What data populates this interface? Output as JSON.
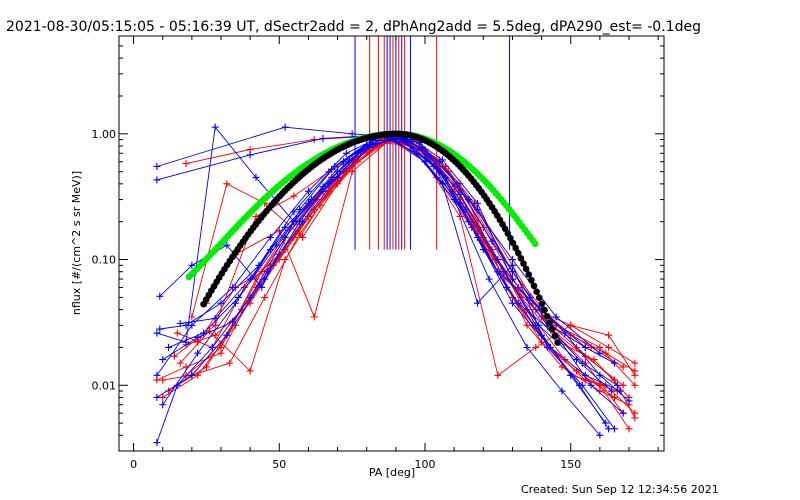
{
  "chart_data": {
    "type": "line",
    "title": "2021-08-30/05:15:05 - 05:16:39 UT, dSectr2add = 2, dPhAng2add = 5.5deg, dPA290_est= -0.1deg",
    "xlabel": "PA [deg]",
    "ylabel": "nflux [#/(cm^2 s sr MeV)]",
    "xlim": [
      -5,
      182
    ],
    "ylim": [
      0.003,
      6.0
    ],
    "yscale": "log",
    "x_ticks": [
      0,
      50,
      100,
      150
    ],
    "x_tick_labels": [
      "0",
      "50",
      "100",
      "150"
    ],
    "y_ticks": [
      0.01,
      0.1,
      1.0
    ],
    "y_tick_labels": [
      "0.01",
      "0.10",
      "1.00"
    ],
    "footer": "Created: Sun Sep 12 12:34:56 2021",
    "colors": {
      "series_a": "#ff0000",
      "series_b": "#0000ff",
      "fit_green": "#00ee00",
      "fit_black": "#000000",
      "axes": "#000000"
    },
    "series": [
      {
        "name": "red-1",
        "color": "#ff0000",
        "x": [
          18,
          28,
          40,
          52,
          63,
          75,
          88,
          100,
          112,
          124,
          137,
          150,
          162,
          172
        ],
        "y": [
          0.021,
          0.025,
          0.045,
          0.12,
          0.3,
          0.62,
          0.9,
          0.72,
          0.4,
          0.1,
          0.045,
          0.025,
          0.018,
          0.013
        ]
      },
      {
        "name": "red-2",
        "color": "#ff0000",
        "x": [
          10,
          22,
          35,
          47,
          60,
          72,
          85,
          97,
          110,
          122,
          135,
          147,
          160,
          170
        ],
        "y": [
          0.008,
          0.012,
          0.03,
          0.09,
          0.22,
          0.5,
          0.85,
          0.8,
          0.35,
          0.12,
          0.03,
          0.014,
          0.009,
          0.007
        ]
      },
      {
        "name": "red-3",
        "color": "#ff0000",
        "x": [
          15,
          27,
          38,
          50,
          62,
          75,
          87,
          100,
          112,
          125,
          138,
          150,
          163,
          172
        ],
        "y": [
          0.026,
          0.02,
          0.06,
          0.11,
          0.3,
          0.6,
          0.92,
          0.75,
          0.3,
          0.08,
          0.04,
          0.03,
          0.025,
          0.012
        ]
      },
      {
        "name": "red-4",
        "color": "#ff0000",
        "x": [
          20,
          33,
          45,
          57,
          70,
          82,
          95,
          107,
          120,
          132,
          145,
          157,
          168
        ],
        "y": [
          0.012,
          0.015,
          0.05,
          0.16,
          0.42,
          0.88,
          0.93,
          0.55,
          0.18,
          0.06,
          0.03,
          0.02,
          0.014
        ]
      },
      {
        "name": "red-5",
        "color": "#ff0000",
        "x": [
          12,
          25,
          37,
          50,
          62,
          75,
          88,
          100,
          112,
          125,
          137,
          150,
          162,
          172
        ],
        "y": [
          0.009,
          0.014,
          0.04,
          0.1,
          0.25,
          0.55,
          0.95,
          0.7,
          0.3,
          0.1,
          0.03,
          0.012,
          0.01,
          0.006
        ]
      },
      {
        "name": "red-6",
        "color": "#ff0000",
        "x": [
          18,
          30,
          42,
          55,
          68,
          80,
          92,
          105,
          118,
          130,
          143,
          155,
          166
        ],
        "y": [
          0.012,
          0.02,
          0.07,
          0.2,
          0.45,
          0.82,
          0.98,
          0.55,
          0.2,
          0.05,
          0.02,
          0.011,
          0.009
        ]
      },
      {
        "name": "red-7",
        "color": "#ff0000",
        "x": [
          10,
          20,
          32,
          44,
          56,
          68,
          80,
          92,
          104,
          116,
          128,
          140,
          152,
          165
        ],
        "y": [
          0.011,
          0.012,
          0.025,
          0.08,
          0.2,
          0.45,
          0.8,
          0.95,
          0.45,
          0.18,
          0.06,
          0.022,
          0.013,
          0.008
        ]
      },
      {
        "name": "red-8",
        "color": "#ff0000",
        "x": [
          22,
          35,
          48,
          60,
          73,
          85,
          98,
          110,
          123,
          135,
          148,
          160,
          170
        ],
        "y": [
          0.022,
          0.06,
          0.09,
          0.22,
          0.5,
          0.85,
          0.88,
          0.38,
          0.12,
          0.04,
          0.016,
          0.01,
          0.0045
        ]
      },
      {
        "name": "red-9",
        "color": "#ff0000",
        "x": [
          18,
          40,
          62,
          85,
          100,
          115,
          130,
          145,
          160,
          172
        ],
        "y": [
          0.58,
          0.75,
          0.9,
          0.97,
          0.72,
          0.3,
          0.08,
          0.03,
          0.02,
          0.01
        ]
      },
      {
        "name": "red-10",
        "color": "#ff0000",
        "x": [
          25,
          35,
          50,
          62,
          75,
          88,
          100,
          112,
          125,
          138,
          150,
          163,
          172
        ],
        "y": [
          0.045,
          0.11,
          0.17,
          0.035,
          0.5,
          0.9,
          0.6,
          0.22,
          0.012,
          0.02,
          0.03,
          0.02,
          0.015
        ]
      },
      {
        "name": "red-11",
        "color": "#ff0000",
        "x": [
          14,
          28,
          42,
          55,
          67,
          80,
          92,
          105,
          117,
          130,
          143,
          155,
          168
        ],
        "y": [
          0.017,
          0.03,
          0.22,
          0.32,
          0.5,
          0.72,
          0.95,
          0.62,
          0.28,
          0.09,
          0.028,
          0.015,
          0.006
        ]
      },
      {
        "name": "red-12",
        "color": "#ff0000",
        "x": [
          20,
          32,
          45,
          58,
          70,
          83,
          95,
          108,
          120,
          133,
          146,
          158,
          170
        ],
        "y": [
          0.035,
          0.4,
          0.28,
          0.15,
          0.4,
          0.92,
          0.88,
          0.5,
          0.15,
          0.05,
          0.022,
          0.016,
          0.008
        ]
      },
      {
        "name": "red-13",
        "color": "#ff0000",
        "x": [
          8,
          18,
          30,
          42,
          55,
          67,
          80,
          92,
          105,
          118,
          130,
          143,
          155,
          168
        ],
        "y": [
          0.011,
          0.014,
          0.018,
          0.06,
          0.15,
          0.35,
          0.75,
          0.97,
          0.5,
          0.16,
          0.07,
          0.028,
          0.017,
          0.01
        ]
      },
      {
        "name": "red-14",
        "color": "#ff0000",
        "x": [
          16,
          26,
          40,
          52,
          64,
          77,
          89,
          101,
          113,
          126,
          140,
          152,
          165,
          172
        ],
        "y": [
          0.015,
          0.027,
          0.013,
          0.1,
          0.27,
          0.6,
          0.93,
          0.7,
          0.25,
          0.08,
          0.035,
          0.02,
          0.011,
          0.0055
        ]
      },
      {
        "name": "blue-1",
        "color": "#0000ff",
        "x": [
          8,
          52,
          75,
          88,
          100,
          112,
          125,
          140,
          155,
          165
        ],
        "y": [
          0.55,
          1.13,
          1.0,
          0.95,
          0.6,
          0.28,
          0.08,
          0.04,
          0.02,
          0.015
        ]
      },
      {
        "name": "blue-2",
        "color": "#0000ff",
        "x": [
          8,
          40,
          65,
          85,
          100,
          115,
          130,
          145,
          160
        ],
        "y": [
          0.43,
          0.68,
          0.92,
          0.98,
          0.65,
          0.3,
          0.1,
          0.035,
          0.018
        ]
      },
      {
        "name": "blue-3",
        "color": "#0000ff",
        "x": [
          8,
          18,
          28,
          42,
          55,
          67,
          80,
          92,
          105,
          118,
          130,
          143,
          155,
          167
        ],
        "y": [
          0.026,
          0.022,
          1.13,
          0.45,
          0.2,
          0.4,
          0.8,
          0.93,
          0.5,
          0.15,
          0.045,
          0.02,
          0.012,
          0.009
        ]
      },
      {
        "name": "blue-4",
        "color": "#0000ff",
        "x": [
          8,
          20,
          32,
          45,
          57,
          70,
          82,
          95,
          107,
          120,
          132,
          145,
          157,
          168
        ],
        "y": [
          0.008,
          0.012,
          0.025,
          0.07,
          0.2,
          0.5,
          0.88,
          0.9,
          0.45,
          0.12,
          0.045,
          0.025,
          0.01,
          0.006
        ]
      },
      {
        "name": "blue-5",
        "color": "#0000ff",
        "x": [
          10,
          22,
          35,
          47,
          60,
          72,
          85,
          97,
          110,
          122,
          135,
          147,
          160
        ],
        "y": [
          0.007,
          0.018,
          0.045,
          0.12,
          0.28,
          0.6,
          0.97,
          0.7,
          0.3,
          0.07,
          0.02,
          0.009,
          0.004
        ]
      },
      {
        "name": "blue-6",
        "color": "#0000ff",
        "x": [
          8,
          15,
          27,
          40,
          52,
          65,
          78,
          90,
          103,
          115,
          128,
          140,
          153,
          163
        ],
        "y": [
          0.0035,
          0.01,
          0.02,
          0.05,
          0.15,
          0.35,
          0.72,
          0.96,
          0.55,
          0.2,
          0.06,
          0.025,
          0.01,
          0.0045
        ]
      },
      {
        "name": "blue-7",
        "color": "#0000ff",
        "x": [
          9,
          20,
          32,
          44,
          57,
          69,
          82,
          94,
          106,
          118,
          130,
          142,
          154,
          165
        ],
        "y": [
          0.051,
          0.09,
          0.13,
          0.06,
          0.25,
          0.55,
          0.9,
          0.85,
          0.4,
          0.045,
          0.09,
          0.02,
          0.01,
          0.0045
        ]
      },
      {
        "name": "blue-8",
        "color": "#0000ff",
        "x": [
          9,
          18,
          30,
          43,
          55,
          68,
          80,
          93,
          105,
          118,
          130,
          143,
          155,
          165
        ],
        "y": [
          0.028,
          0.03,
          0.045,
          0.09,
          0.24,
          0.52,
          0.82,
          0.92,
          0.6,
          0.25,
          0.08,
          0.03,
          0.02,
          0.015
        ]
      },
      {
        "name": "blue-9",
        "color": "#0000ff",
        "x": [
          8,
          20,
          34,
          47,
          60,
          73,
          86,
          99,
          112,
          125,
          138,
          150,
          162
        ],
        "y": [
          0.012,
          0.03,
          0.06,
          0.15,
          0.35,
          0.7,
          0.98,
          0.78,
          0.33,
          0.1,
          0.03,
          0.012,
          0.005
        ]
      },
      {
        "name": "blue-10",
        "color": "#0000ff",
        "x": [
          12,
          24,
          36,
          49,
          61,
          74,
          86,
          98,
          111,
          123,
          136,
          148,
          160,
          170
        ],
        "y": [
          0.02,
          0.026,
          0.05,
          0.13,
          0.3,
          0.62,
          0.95,
          0.85,
          0.4,
          0.14,
          0.05,
          0.026,
          0.012,
          0.0075
        ]
      },
      {
        "name": "blue-11",
        "color": "#0000ff",
        "x": [
          10,
          22,
          34,
          46,
          58,
          70,
          82,
          94,
          106,
          118,
          130,
          142,
          154,
          166
        ],
        "y": [
          0.016,
          0.024,
          0.032,
          0.08,
          0.2,
          0.45,
          0.82,
          0.97,
          0.62,
          0.28,
          0.07,
          0.03,
          0.015,
          0.01
        ]
      },
      {
        "name": "blue-12",
        "color": "#0000ff",
        "x": [
          16,
          28,
          40,
          52,
          65,
          77,
          90,
          102,
          114,
          127,
          139,
          152,
          164
        ],
        "y": [
          0.031,
          0.034,
          0.07,
          0.18,
          0.38,
          0.7,
          0.95,
          0.65,
          0.25,
          0.08,
          0.03,
          0.016,
          0.009
        ]
      }
    ],
    "fits": [
      {
        "name": "green-fit",
        "color": "#00ee00",
        "peak": 1.0,
        "center": 90.2,
        "floor": 0.03,
        "sigma_left": 28.5,
        "sigma_right": 22.5,
        "x_range": [
          19,
          138
        ]
      },
      {
        "name": "black-fit",
        "color": "#000000",
        "peak": 1.0,
        "center": 90.2,
        "floor": 0.0,
        "sigma_left": 26.5,
        "sigma_right": 20.0,
        "x_range": [
          24,
          146
        ]
      }
    ],
    "spikes": [
      {
        "name": "spike-blue-1",
        "color": "#0000ff",
        "x": 76
      },
      {
        "name": "spike-red-1",
        "color": "#ff0000",
        "x": 81
      },
      {
        "name": "spike-red-2",
        "color": "#ff0000",
        "x": 84
      },
      {
        "name": "spike-red-3",
        "color": "#ff0000",
        "x": 86
      },
      {
        "name": "spike-blue-2",
        "color": "#0000ff",
        "x": 87
      },
      {
        "name": "spike-blue-3",
        "color": "#0000ff",
        "x": 88
      },
      {
        "name": "spike-red-4",
        "color": "#ff0000",
        "x": 89
      },
      {
        "name": "spike-blue-4",
        "color": "#0000ff",
        "x": 90
      },
      {
        "name": "spike-red-5",
        "color": "#ff0000",
        "x": 91
      },
      {
        "name": "spike-blue-5",
        "color": "#0000ff",
        "x": 92
      },
      {
        "name": "spike-red-6",
        "color": "#ff0000",
        "x": 93
      },
      {
        "name": "spike-blue-6",
        "color": "#0000ff",
        "x": 95
      },
      {
        "name": "spike-red-7",
        "color": "#ff0000",
        "x": 104
      },
      {
        "name": "spike-blue-7",
        "color": "#0000ff",
        "x": 129
      }
    ],
    "spike_range": [
      0.12,
      6.0
    ]
  }
}
